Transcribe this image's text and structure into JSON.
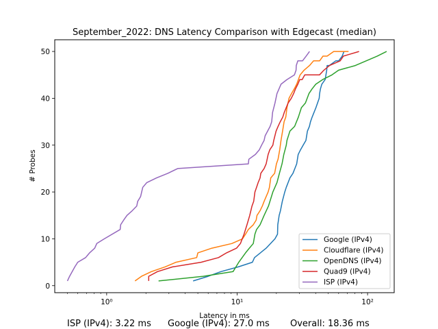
{
  "chart_data": {
    "type": "line",
    "title": "September_2022: DNS Latency Comparison with Edgecast (median)",
    "xlabel": "Latency in ms",
    "ylabel": "# Probes",
    "xscale": "log",
    "xlim": [
      0.4,
      160
    ],
    "ylim": [
      -1.5,
      52.5
    ],
    "xticks": [
      1,
      10,
      100
    ],
    "xtick_labels": [
      "10⁰",
      "10¹",
      "10²"
    ],
    "yticks": [
      0,
      10,
      20,
      30,
      40,
      50
    ],
    "grid": false,
    "legend_position": "lower-right",
    "series": [
      {
        "name": "Google (IPv4)",
        "color": "#1f77b4",
        "x": [
          4.6,
          6.0,
          7.5,
          10.2,
          13.1,
          13.6,
          16.7,
          19.5,
          20.4,
          20.5,
          21.0,
          21.5,
          22.2,
          23.2,
          23.8,
          25.4,
          26.8,
          28.6,
          29.4,
          30.6,
          32.1,
          33.7,
          34.6,
          35.8,
          36.5,
          37.6,
          40.2,
          42.6,
          42.9,
          43.5,
          44.6,
          47.3,
          48.6,
          49.0,
          50.9,
          57.0,
          60.0,
          63.9,
          65.9
        ],
        "y": [
          1,
          2,
          3,
          4,
          5,
          6,
          8,
          10,
          11,
          13,
          15,
          16,
          18,
          20,
          21,
          23,
          24,
          26,
          28,
          29,
          30,
          31,
          33,
          34,
          35,
          36,
          38,
          40,
          41,
          42,
          43,
          44,
          46,
          47,
          47,
          48,
          48,
          49,
          50
        ]
      },
      {
        "name": "Cloudflare (IPv4)",
        "color": "#ff7f0e",
        "x": [
          1.65,
          1.85,
          2.2,
          2.8,
          3.4,
          4.9,
          5.0,
          6.4,
          9.1,
          11.0,
          11.6,
          12.2,
          13.3,
          14.0,
          14.2,
          15.0,
          15.6,
          16.1,
          17.3,
          17.7,
          18.1,
          19.4,
          20.0,
          20.6,
          21.2,
          21.7,
          22.3,
          22.9,
          23.6,
          24.1,
          25.0,
          26.1,
          27.4,
          28.6,
          30.4,
          32.6,
          35.9,
          38.5,
          42.9,
          45.5,
          45.8,
          49.0,
          55.0,
          64.8,
          71.5
        ],
        "y": [
          1,
          2,
          3,
          4,
          5,
          6,
          7,
          8,
          9,
          10,
          11,
          12,
          13,
          14,
          15,
          16,
          17,
          18,
          20,
          21,
          23,
          24,
          26,
          27,
          29,
          31,
          33,
          35,
          36,
          38,
          40,
          41,
          42,
          43,
          45,
          46,
          47,
          48,
          48,
          49,
          49,
          49,
          50,
          50,
          50
        ]
      },
      {
        "name": "OpenDNS (IPv4)",
        "color": "#2ca02c",
        "x": [
          2.5,
          5.5,
          9.3,
          10.3,
          11.6,
          12.4,
          13.3,
          13.7,
          14.1,
          15.0,
          16.1,
          17.4,
          18.8,
          20.2,
          21.1,
          22.1,
          22.8,
          23.8,
          24.1,
          25.4,
          27.6,
          29.5,
          31.1,
          33.4,
          35.5,
          37.5,
          40.1,
          45.3,
          53.3,
          60.0,
          80.6,
          118.5,
          140.0
        ],
        "y": [
          1,
          2,
          3,
          5,
          7,
          8,
          9,
          11,
          12,
          13,
          15,
          17,
          20,
          22,
          24,
          26,
          28,
          30,
          31,
          33,
          34,
          36,
          38,
          39,
          41,
          42,
          43,
          44,
          45,
          46,
          47,
          49,
          50
        ]
      },
      {
        "name": "Quad9 (IPv4)",
        "color": "#d62728",
        "x": [
          2.1,
          2.1,
          2.45,
          3.2,
          5.3,
          7.2,
          8.3,
          9.9,
          10.6,
          11.3,
          11.9,
          12.5,
          13.0,
          13.4,
          13.7,
          14.1,
          14.5,
          15.0,
          15.2,
          16.1,
          16.7,
          17.3,
          17.8,
          18.8,
          19.1,
          19.9,
          20.6,
          21.4,
          22.4,
          23.0,
          24.6,
          26.0,
          27.1,
          28.0,
          29.2,
          30.2,
          31.5,
          33.0,
          34.6,
          36.6,
          42.8,
          46.3,
          51.1,
          61.6,
          65.2,
          86.0
        ],
        "y": [
          1,
          2,
          3,
          4,
          5,
          6,
          7,
          8,
          9,
          11,
          13,
          15,
          17,
          18,
          20,
          21,
          22,
          23,
          24,
          25,
          26,
          28,
          29,
          30,
          31,
          33,
          34,
          35,
          36,
          37,
          39,
          40,
          41,
          42,
          43,
          44,
          44,
          45,
          45,
          45,
          45,
          46,
          47,
          48,
          49,
          50
        ]
      },
      {
        "name": "ISP (IPv4)",
        "color": "#9467bd",
        "x": [
          0.5,
          0.52,
          0.57,
          0.6,
          0.69,
          0.74,
          0.81,
          0.84,
          0.96,
          1.27,
          1.28,
          1.35,
          1.43,
          1.57,
          1.7,
          1.73,
          1.82,
          1.89,
          2.03,
          2.41,
          2.95,
          3.5,
          12.2,
          12.3,
          13.8,
          14.8,
          15.4,
          16.1,
          16.4,
          17.9,
          18.4,
          18.7,
          19.5,
          20.2,
          21.7,
          24.1,
          27.5,
          28.3,
          28.4,
          29.2,
          31.7,
          33.8,
          35.9
        ],
        "y": [
          1,
          2,
          4,
          5,
          6,
          7,
          8,
          9,
          10,
          12,
          13,
          14,
          15,
          16,
          17,
          18,
          19,
          21,
          22,
          23,
          24,
          25,
          26,
          27,
          28,
          29,
          30,
          31,
          32,
          34,
          35,
          37,
          39,
          41,
          43,
          44,
          45,
          46,
          47,
          48,
          48,
          49,
          50
        ]
      }
    ]
  },
  "footer": {
    "isp": "ISP (IPv4): 3.22 ms",
    "google": "Google (IPv4): 27.0 ms",
    "overall": "Overall: 18.36 ms"
  }
}
